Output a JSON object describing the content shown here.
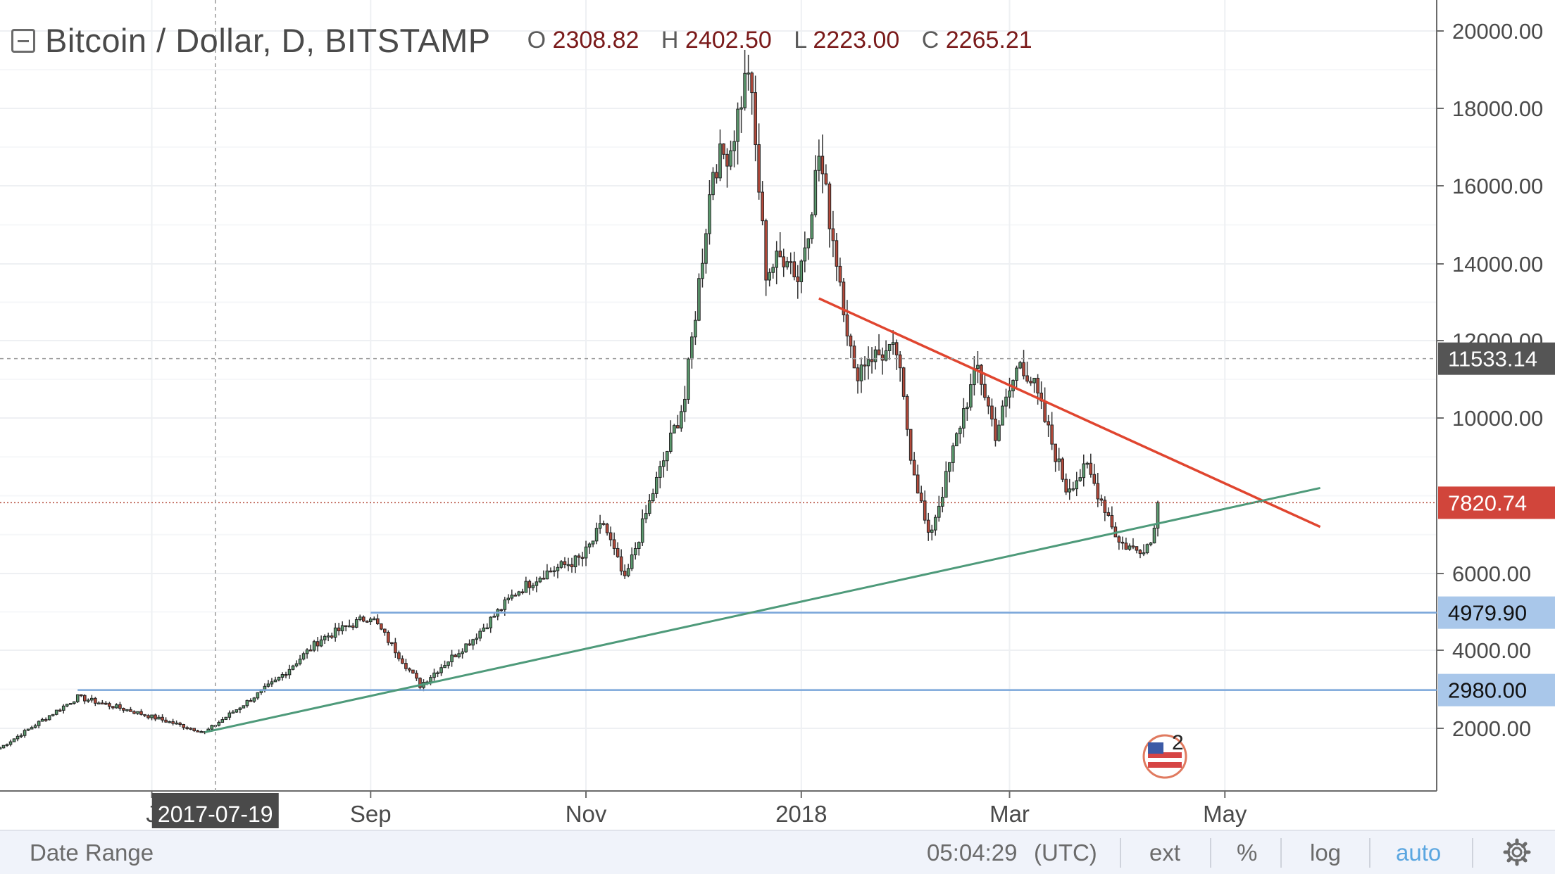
{
  "header": {
    "title": "Bitcoin / Dollar, D, BITSTAMP",
    "open_label": "O",
    "open": "2308.82",
    "high_label": "H",
    "high": "2402.50",
    "low_label": "L",
    "low": "2223.00",
    "close_label": "C",
    "close": "2265.21"
  },
  "bottom_bar": {
    "date_range": "Date Range",
    "time": "05:04:29",
    "timezone": "(UTC)",
    "ext": "ext",
    "percent": "%",
    "log": "log",
    "auto": "auto"
  },
  "badge_text": "2",
  "crosshair_date": "2017-07-19",
  "colors": {
    "up": "#5b9a6e",
    "down": "#b4493a",
    "resistance": "#e0452f",
    "support": "#4e9a7a",
    "level": "#7aa6da",
    "bottom_auto": "#5aa6e0"
  },
  "chart_data": {
    "type": "candlestick",
    "title": "Bitcoin / Dollar, D, BITSTAMP",
    "ylim": [
      1000,
      20500
    ],
    "y_ticks": [
      "20000.00",
      "18000.00",
      "16000.00",
      "14000.00",
      "12000.00",
      "10000.00",
      "6000.00",
      "4000.00",
      "2000.00"
    ],
    "y_tick_values": [
      20000,
      18000,
      16000,
      14000,
      12000,
      10000,
      6000,
      4000,
      2000
    ],
    "x_labels": [
      "J",
      "Sep",
      "Nov",
      "2018",
      "Mar",
      "May"
    ],
    "x_label_dates": [
      "2017-07-01",
      "2017-09-01",
      "2017-11-01",
      "2018-01-01",
      "2018-03-01",
      "2018-05-01"
    ],
    "x_range": [
      "2017-05-19",
      "2018-06-30"
    ],
    "price_labels": [
      {
        "text": "11533.14",
        "value": 11533.14,
        "style": "crosshair"
      },
      {
        "text": "7820.74",
        "value": 7820.74,
        "style": "last"
      },
      {
        "text": "4979.90",
        "value": 4979.9,
        "style": "level"
      },
      {
        "text": "2980.00",
        "value": 2980,
        "style": "level"
      }
    ],
    "horizontal_levels": [
      {
        "value": 4979.9,
        "from": "2017-09-01"
      },
      {
        "value": 2980,
        "from": "2017-06-10"
      }
    ],
    "trendlines": [
      {
        "name": "",
        "from": [
          "2018-01-06",
          13100
        ],
        "to": [
          "2018-05-28",
          7200
        ],
        "color": "resistance"
      },
      {
        "name": "",
        "from": [
          "2017-07-16",
          1900
        ],
        "to": [
          "2018-05-28",
          8200
        ],
        "color": "support"
      }
    ],
    "anchors": [
      [
        "2017-05-19",
        1500
      ],
      [
        "2017-06-10",
        2800
      ],
      [
        "2017-06-25",
        2450
      ],
      [
        "2017-07-16",
        1900
      ],
      [
        "2017-08-05",
        3200
      ],
      [
        "2017-08-18",
        4300
      ],
      [
        "2017-09-01",
        4900
      ],
      [
        "2017-09-15",
        3100
      ],
      [
        "2017-09-30",
        4300
      ],
      [
        "2017-10-12",
        5500
      ],
      [
        "2017-10-20",
        6000
      ],
      [
        "2017-10-31",
        6400
      ],
      [
        "2017-11-06",
        7300
      ],
      [
        "2017-11-12",
        5800
      ],
      [
        "2017-11-20",
        8100
      ],
      [
        "2017-11-29",
        10500
      ],
      [
        "2017-12-07",
        16500
      ],
      [
        "2017-12-12",
        17000
      ],
      [
        "2017-12-17",
        19100
      ],
      [
        "2017-12-22",
        13800
      ],
      [
        "2017-12-28",
        14300
      ],
      [
        "2017-12-31",
        13600
      ],
      [
        "2018-01-03",
        15000
      ],
      [
        "2018-01-06",
        16800
      ],
      [
        "2018-01-12",
        13600
      ],
      [
        "2018-01-16",
        11100
      ],
      [
        "2018-01-20",
        11600
      ],
      [
        "2018-01-28",
        11700
      ],
      [
        "2018-02-01",
        9100
      ],
      [
        "2018-02-06",
        6900
      ],
      [
        "2018-02-10",
        8100
      ],
      [
        "2018-02-16",
        10200
      ],
      [
        "2018-02-20",
        11300
      ],
      [
        "2018-02-25",
        9600
      ],
      [
        "2018-03-04",
        11500
      ],
      [
        "2018-03-08",
        10800
      ],
      [
        "2018-03-17",
        8200
      ],
      [
        "2018-03-23",
        8700
      ],
      [
        "2018-03-29",
        7500
      ],
      [
        "2018-04-01",
        6800
      ],
      [
        "2018-04-06",
        6600
      ],
      [
        "2018-04-10",
        6800
      ],
      [
        "2018-04-12",
        7900
      ]
    ],
    "last_close": 7820.74
  }
}
